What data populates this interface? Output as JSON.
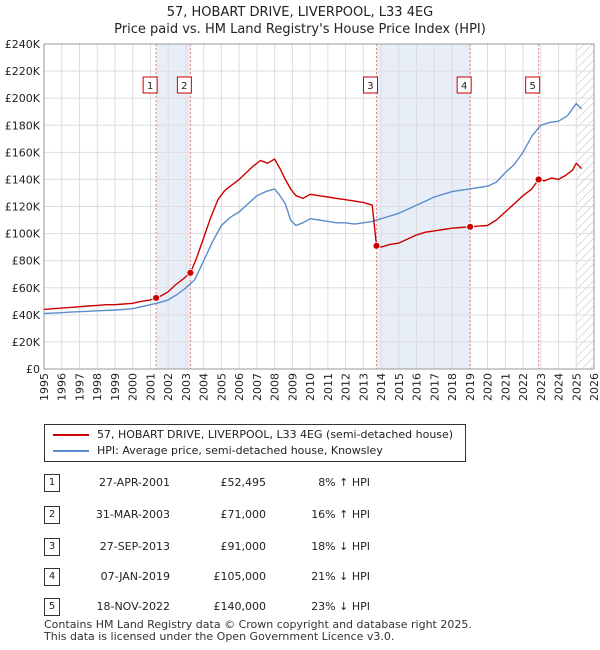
{
  "title_line1": "57, HOBART DRIVE, LIVERPOOL, L33 4EG",
  "title_line2": "Price paid vs. HM Land Registry's House Price Index (HPI)",
  "chart_data": {
    "type": "line",
    "xlim": [
      1995,
      2026
    ],
    "ylim": [
      0,
      240000
    ],
    "y_ticks": [
      0,
      20000,
      40000,
      60000,
      80000,
      100000,
      120000,
      140000,
      160000,
      180000,
      200000,
      220000,
      240000
    ],
    "y_tick_labels": [
      "£0",
      "£20K",
      "£40K",
      "£60K",
      "£80K",
      "£100K",
      "£120K",
      "£140K",
      "£160K",
      "£180K",
      "£200K",
      "£220K",
      "£240K"
    ],
    "x_ticks": [
      1995,
      1996,
      1997,
      1998,
      1999,
      2000,
      2001,
      2002,
      2003,
      2004,
      2005,
      2006,
      2007,
      2008,
      2009,
      2010,
      2011,
      2012,
      2013,
      2014,
      2015,
      2016,
      2017,
      2018,
      2019,
      2020,
      2021,
      2022,
      2023,
      2024,
      2025,
      2026
    ],
    "x_tick_labels": [
      "1995",
      "1996",
      "1997",
      "1998",
      "1999",
      "2000",
      "2001",
      "2002",
      "2003",
      "2004",
      "2005",
      "2006",
      "2007",
      "2008",
      "2009",
      "2010",
      "2011",
      "2012",
      "2013",
      "2014",
      "2015",
      "2016",
      "2017",
      "2018",
      "2019",
      "2020",
      "2021",
      "2022",
      "2023",
      "2024",
      "2025",
      "2026"
    ],
    "grid": true,
    "future_hatch_from": 2025.0,
    "series": [
      {
        "name": "57, HOBART DRIVE, LIVERPOOL, L33 4EG (semi-detached house)",
        "color": "#cc0000",
        "x": [
          1995.0,
          1995.5,
          1996.0,
          1996.5,
          1997.0,
          1997.5,
          1998.0,
          1998.5,
          1999.0,
          1999.5,
          2000.0,
          2000.5,
          2001.0,
          2001.32,
          2001.6,
          2002.0,
          2002.4,
          2002.8,
          2003.25,
          2003.6,
          2004.0,
          2004.4,
          2004.8,
          2005.2,
          2005.6,
          2006.0,
          2006.4,
          2006.8,
          2007.2,
          2007.6,
          2008.0,
          2008.3,
          2008.6,
          2008.9,
          2009.2,
          2009.6,
          2010.0,
          2010.5,
          2011.0,
          2011.5,
          2012.0,
          2012.5,
          2013.0,
          2013.5,
          2013.74,
          2014.0,
          2014.5,
          2015.0,
          2015.5,
          2016.0,
          2016.5,
          2017.0,
          2017.5,
          2018.0,
          2018.5,
          2019.02,
          2019.5,
          2020.0,
          2020.5,
          2021.0,
          2021.5,
          2022.0,
          2022.5,
          2022.88,
          2023.2,
          2023.6,
          2024.0,
          2024.4,
          2024.8,
          2025.0,
          2025.3
        ],
        "y": [
          44000,
          44500,
          45000,
          45500,
          46000,
          46500,
          47000,
          47500,
          47500,
          48000,
          48500,
          50000,
          51000,
          52495,
          54000,
          57000,
          62000,
          66000,
          71000,
          82000,
          97000,
          112000,
          125000,
          132000,
          136000,
          140000,
          145000,
          150000,
          154000,
          152000,
          155000,
          148000,
          140000,
          133000,
          128000,
          126000,
          129000,
          128000,
          127000,
          126000,
          125000,
          124000,
          123000,
          121000,
          91000,
          90000,
          92000,
          93000,
          96000,
          99000,
          101000,
          102000,
          103000,
          104000,
          104500,
          105000,
          105500,
          106000,
          110000,
          116000,
          122000,
          128000,
          133000,
          140000,
          139000,
          141000,
          140000,
          143000,
          147000,
          152000,
          148000
        ]
      },
      {
        "name": "HPI: Average price, semi-detached house, Knowsley",
        "color": "#5b8ccc",
        "x": [
          1995.0,
          1995.5,
          1996.0,
          1996.5,
          1997.0,
          1997.5,
          1998.0,
          1998.5,
          1999.0,
          1999.5,
          2000.0,
          2000.5,
          2001.0,
          2001.5,
          2002.0,
          2002.5,
          2003.0,
          2003.5,
          2004.0,
          2004.5,
          2005.0,
          2005.5,
          2006.0,
          2006.5,
          2007.0,
          2007.5,
          2008.0,
          2008.3,
          2008.6,
          2008.9,
          2009.2,
          2009.6,
          2010.0,
          2010.5,
          2011.0,
          2011.5,
          2012.0,
          2012.5,
          2013.0,
          2013.5,
          2014.0,
          2014.5,
          2015.0,
          2015.5,
          2016.0,
          2016.5,
          2017.0,
          2017.5,
          2018.0,
          2018.5,
          2019.0,
          2019.5,
          2020.0,
          2020.5,
          2021.0,
          2021.5,
          2022.0,
          2022.5,
          2023.0,
          2023.5,
          2024.0,
          2024.5,
          2025.0,
          2025.3
        ],
        "y": [
          41000,
          41300,
          41600,
          42000,
          42300,
          42600,
          43000,
          43300,
          43600,
          44000,
          44500,
          46000,
          47500,
          49000,
          51000,
          55000,
          60000,
          66000,
          80000,
          94000,
          106000,
          112000,
          116000,
          122000,
          128000,
          131000,
          133000,
          128000,
          122000,
          110000,
          106000,
          108000,
          111000,
          110000,
          109000,
          108000,
          108000,
          107000,
          108000,
          109000,
          111000,
          113000,
          115000,
          118000,
          121000,
          124000,
          127000,
          129000,
          131000,
          132000,
          133000,
          134000,
          135000,
          138000,
          145000,
          151000,
          160000,
          172000,
          180000,
          182000,
          183000,
          187000,
          196000,
          192000
        ]
      }
    ],
    "markers": [
      {
        "label": "1",
        "x": 2001.32,
        "y": 52495
      },
      {
        "label": "2",
        "x": 2003.25,
        "y": 71000
      },
      {
        "label": "3",
        "x": 2013.74,
        "y": 91000
      },
      {
        "label": "4",
        "x": 2019.02,
        "y": 105000
      },
      {
        "label": "5",
        "x": 2022.88,
        "y": 140000
      }
    ],
    "shaded_bands": [
      [
        2001.32,
        2003.25
      ],
      [
        2013.74,
        2019.02
      ]
    ]
  },
  "legend": {
    "items": [
      {
        "label": "57, HOBART DRIVE, LIVERPOOL, L33 4EG (semi-detached house)",
        "color": "#cc0000"
      },
      {
        "label": "HPI: Average price, semi-detached house, Knowsley",
        "color": "#5b8ccc"
      }
    ]
  },
  "transactions": [
    {
      "num": "1",
      "date": "27-APR-2001",
      "price": "£52,495",
      "pct": "8% ↑ HPI"
    },
    {
      "num": "2",
      "date": "31-MAR-2003",
      "price": "£71,000",
      "pct": "16% ↑ HPI"
    },
    {
      "num": "3",
      "date": "27-SEP-2013",
      "price": "£91,000",
      "pct": "18% ↓ HPI"
    },
    {
      "num": "4",
      "date": "07-JAN-2019",
      "price": "£105,000",
      "pct": "21% ↓ HPI"
    },
    {
      "num": "5",
      "date": "18-NOV-2022",
      "price": "£140,000",
      "pct": "23% ↓ HPI"
    }
  ],
  "footer_line1": "Contains HM Land Registry data © Crown copyright and database right 2025.",
  "footer_line2": "This data is licensed under the Open Government Licence v3.0."
}
